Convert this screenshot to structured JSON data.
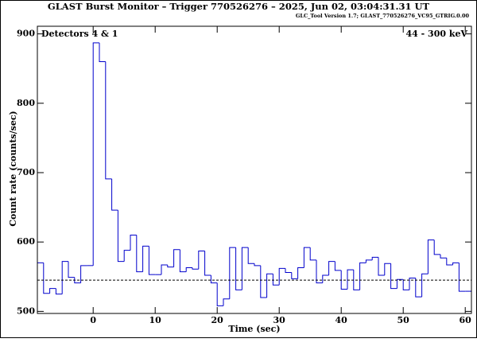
{
  "chart_data": {
    "type": "histogram",
    "title": "GLAST Burst Monitor  –  Trigger 770526276  –  2025, Jun 02, 03:04:31.31 UT",
    "subtitle": "GLC_Tool Version 1.7; GLAST_770526276_VC95_GTRIG.0.00",
    "annotations": [
      "Detectors 4 & 1",
      "44 - 300 keV"
    ],
    "xlabel": "Time (sec)",
    "ylabel": "Count rate (counts/sec)",
    "bins": [
      -9,
      -8,
      -7,
      -6,
      -5,
      -4,
      -3,
      -2,
      -1,
      0,
      1,
      2,
      3,
      4,
      5,
      6,
      7,
      8,
      9,
      10,
      11,
      12,
      13,
      14,
      15,
      16,
      17,
      18,
      19,
      20,
      21,
      22,
      23,
      24,
      25,
      26,
      27,
      28,
      29,
      30,
      31,
      32,
      33,
      34,
      35,
      36,
      37,
      38,
      39,
      40,
      41,
      42,
      43,
      44,
      45,
      46,
      47,
      48,
      49,
      50,
      51,
      52,
      53,
      54,
      55,
      56,
      57,
      58,
      59,
      60,
      61
    ],
    "values": [
      570,
      526,
      533,
      525,
      572,
      549,
      541,
      566,
      566,
      887,
      860,
      691,
      646,
      572,
      588,
      610,
      557,
      594,
      553,
      553,
      567,
      564,
      589,
      557,
      563,
      561,
      587,
      552,
      541,
      508,
      518,
      592,
      531,
      592,
      569,
      566,
      520,
      554,
      538,
      562,
      556,
      547,
      563,
      592,
      574,
      541,
      552,
      572,
      559,
      532,
      560,
      531,
      570,
      574,
      578,
      552,
      569,
      533,
      546,
      531,
      548,
      521,
      554,
      603,
      582,
      577,
      567,
      570,
      529,
      529
    ],
    "color": "#0000cc",
    "background": 545,
    "xlim": [
      -9,
      61
    ],
    "ylim": [
      497,
      911
    ],
    "xticks": [
      0,
      10,
      20,
      30,
      40,
      50,
      60
    ],
    "yticks": [
      500,
      600,
      700,
      800,
      900
    ]
  }
}
